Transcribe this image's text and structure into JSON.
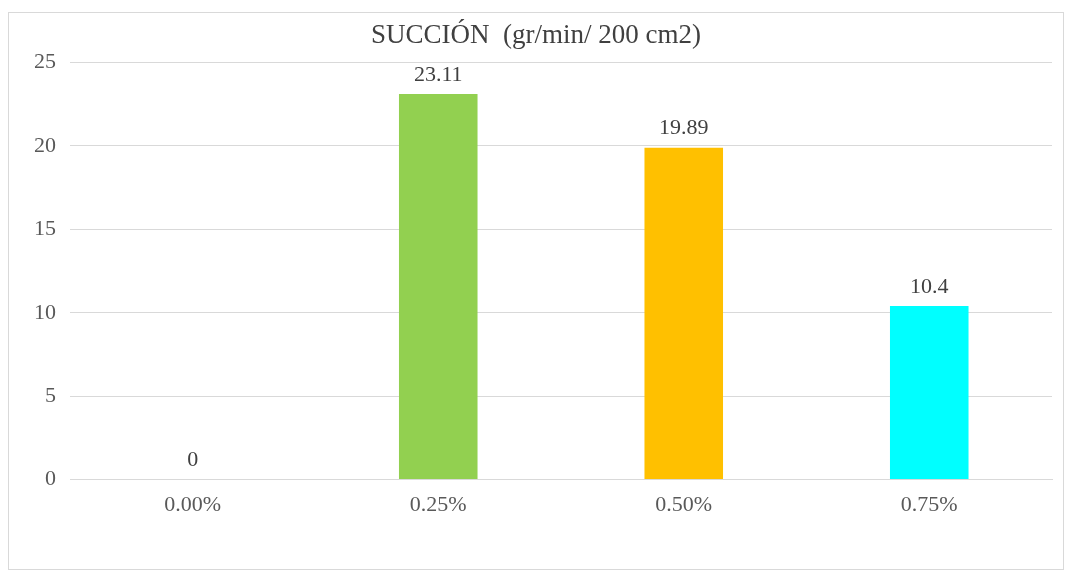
{
  "chart_data": {
    "type": "bar",
    "title": "SUCCIÓN  (gr/min/ 200 cm2)",
    "categories": [
      "0.00%",
      "0.25%",
      "0.50%",
      "0.75%"
    ],
    "values": [
      0,
      23.11,
      19.89,
      10.4
    ],
    "colors": [
      "#4472c4",
      "#92d050",
      "#ffc000",
      "#00ffff"
    ],
    "ylim": [
      0,
      25
    ],
    "yticks": [
      0,
      5,
      10,
      15,
      20,
      25
    ],
    "grid": "y",
    "data_labels": true
  }
}
